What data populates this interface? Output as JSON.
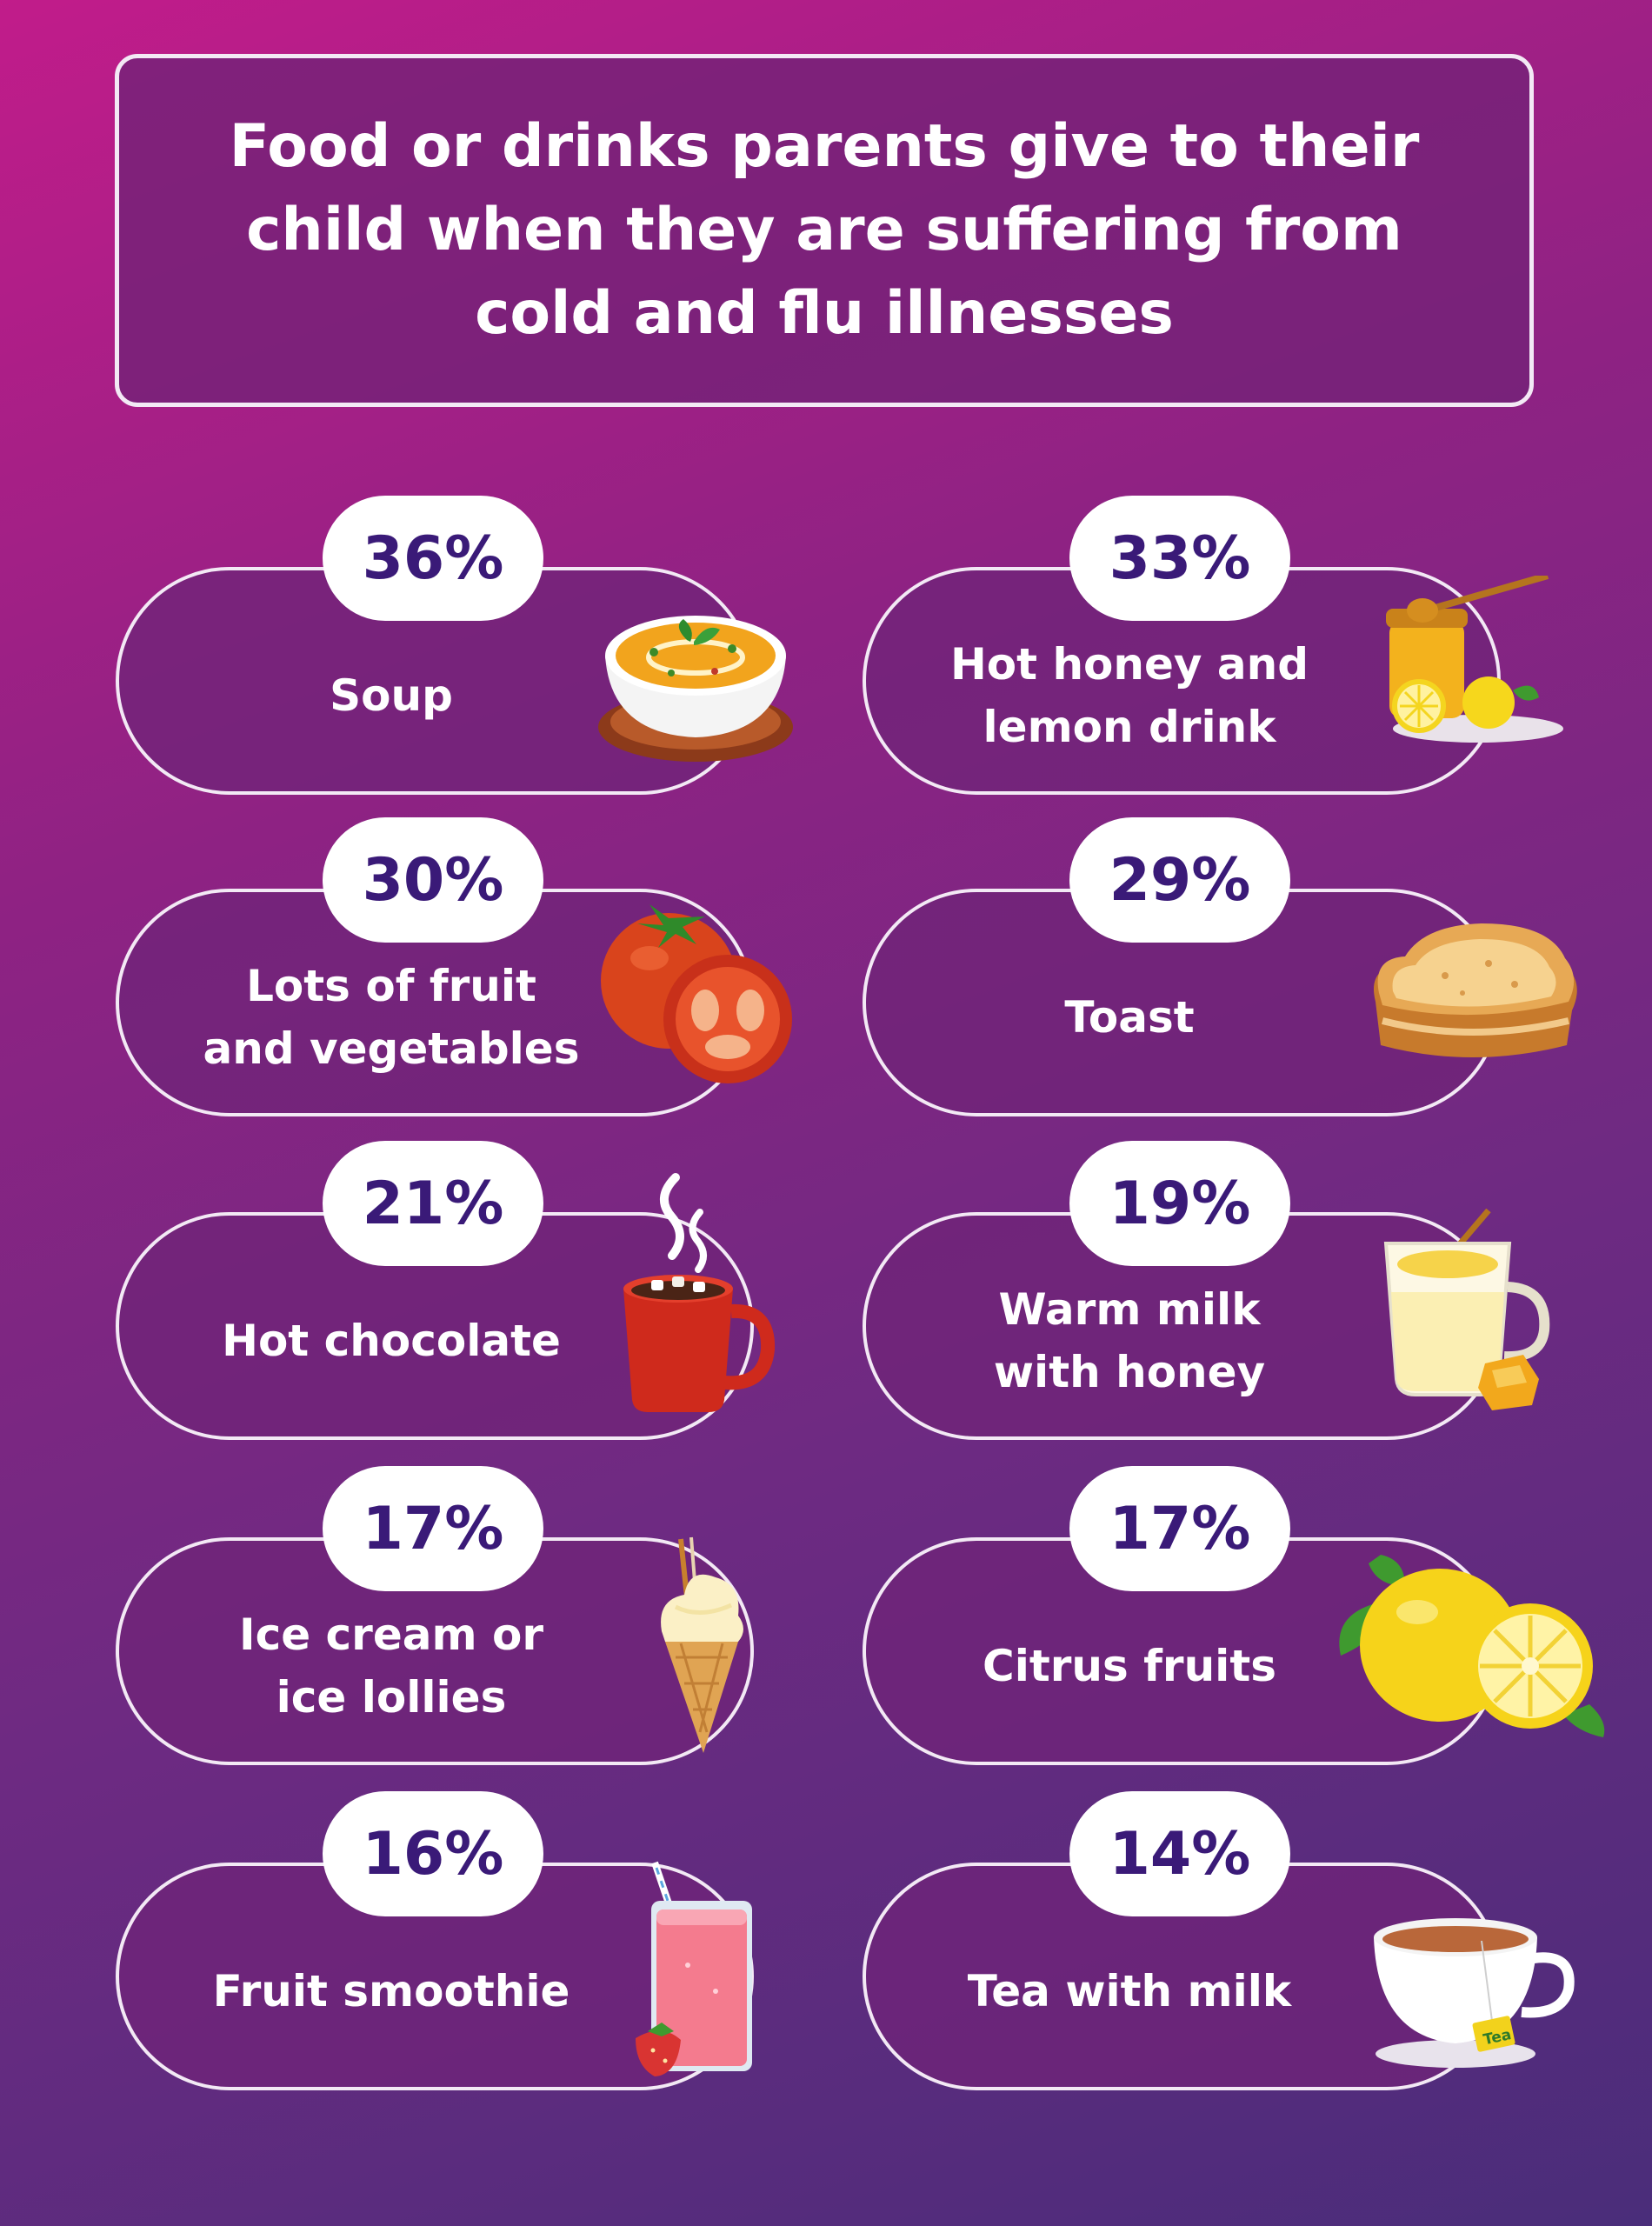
{
  "title": "Food or drinks parents give to their child when they are suffering from cold and flu illnesses",
  "items": [
    {
      "percent_label": "36%",
      "label": "Soup",
      "icon": "soup-bowl-icon"
    },
    {
      "percent_label": "33%",
      "label": "Hot honey and\nlemon drink",
      "icon": "honey-jar-lemon-icon"
    },
    {
      "percent_label": "30%",
      "label": "Lots of fruit\nand vegetables",
      "icon": "tomato-icon"
    },
    {
      "percent_label": "29%",
      "label": "Toast",
      "icon": "toast-icon"
    },
    {
      "percent_label": "21%",
      "label": "Hot chocolate",
      "icon": "hot-chocolate-mug-icon"
    },
    {
      "percent_label": "19%",
      "label": "Warm milk\nwith honey",
      "icon": "milk-honey-glass-icon"
    },
    {
      "percent_label": "17%",
      "label": "Ice cream or\nice lollies",
      "icon": "ice-cream-cone-icon"
    },
    {
      "percent_label": "17%",
      "label": "Citrus fruits",
      "icon": "lemon-icon"
    },
    {
      "percent_label": "16%",
      "label": "Fruit smoothie",
      "icon": "smoothie-glass-icon"
    },
    {
      "percent_label": "14%",
      "label": "Tea with milk",
      "icon": "tea-cup-icon"
    }
  ],
  "tea_tag_text": "Tea",
  "chart_data": {
    "type": "bar",
    "title": "Food or drinks parents give to their child when they are suffering from cold and flu illnesses",
    "categories": [
      "Soup",
      "Hot honey and lemon drink",
      "Lots of fruit and vegetables",
      "Toast",
      "Hot chocolate",
      "Warm milk with honey",
      "Ice cream or ice lollies",
      "Citrus fruits",
      "Fruit smoothie",
      "Tea with milk"
    ],
    "values": [
      36,
      33,
      30,
      29,
      21,
      19,
      17,
      17,
      16,
      14
    ],
    "unit": "%"
  },
  "colors": {
    "background_top": "#c11c8a",
    "background_bottom": "#4a2d7a",
    "card_fill": "#702478",
    "card_border": "#f3e9f5",
    "percent_text": "#3a1a78"
  }
}
